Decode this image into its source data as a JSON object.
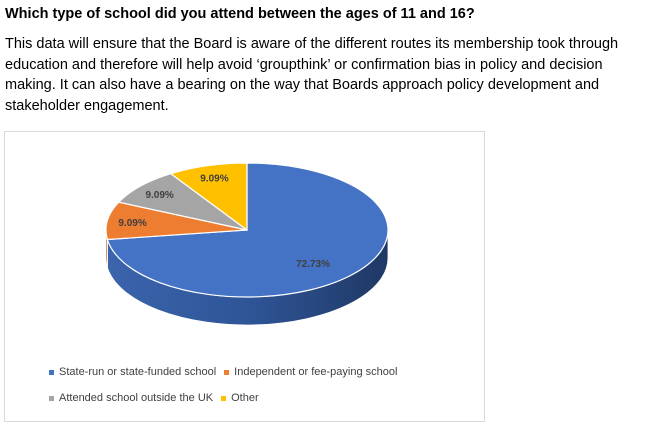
{
  "question": "Which type of school did you attend between the ages of 11 and 16?",
  "body_text": "This data will ensure that the Board is aware of the different routes its membership took through education and therefore will help avoid ‘groupthink’ or confirmation bias in policy and decision making. It can also have a bearing on the way that Boards approach policy development and stakeholder engagement.",
  "chart_data": {
    "type": "pie",
    "style": "3d",
    "legend_position": "bottom",
    "categories": [
      "State-run or state-funded school",
      "Independent or fee-paying school",
      "Attended school outside the UK",
      "Other"
    ],
    "values": [
      72.73,
      9.09,
      9.09,
      9.09
    ],
    "labels": [
      "72.73%",
      "9.09%",
      "9.09%",
      "9.09%"
    ],
    "colors": [
      "#4472c4",
      "#ed7d31",
      "#a5a5a5",
      "#ffc000"
    ]
  }
}
